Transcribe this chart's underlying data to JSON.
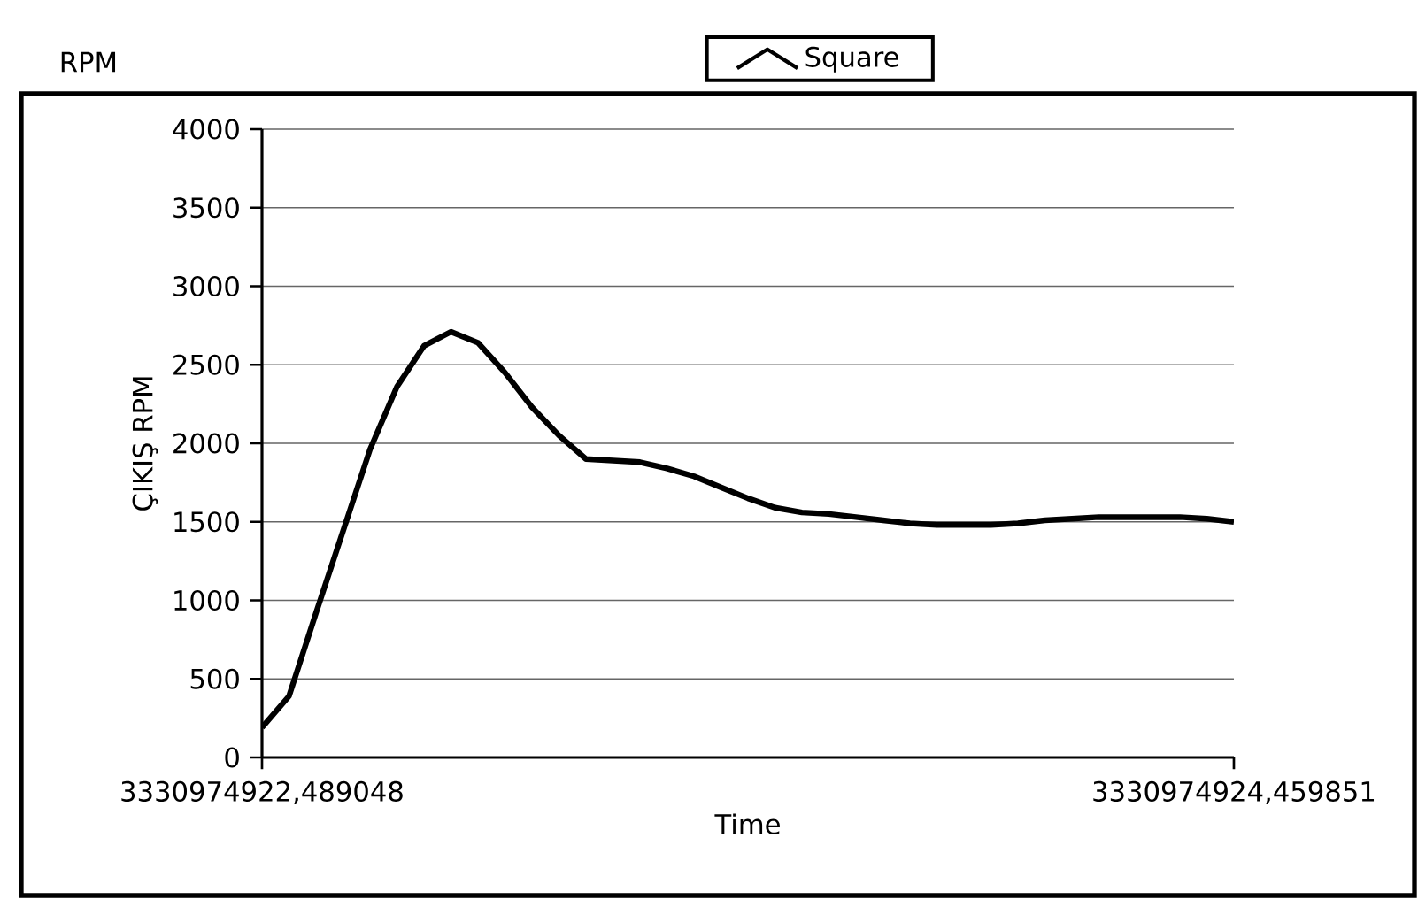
{
  "chart_data": {
    "type": "line",
    "xlabel": "Time",
    "ylabel": "ÇIKIŞ RPM",
    "annotations": [
      "RPM"
    ],
    "categories": [
      "3330974922,489048",
      null,
      null,
      null,
      null,
      null,
      null,
      null,
      null,
      null,
      null,
      null,
      null,
      null,
      null,
      null,
      null,
      null,
      null,
      null,
      null,
      null,
      null,
      null,
      null,
      null,
      null,
      null,
      null,
      null,
      null,
      null,
      null,
      null,
      null,
      null,
      "3330974924,459851"
    ],
    "series": [
      {
        "name": "Square",
        "color": "#000000",
        "values": [
          190,
          390,
          920,
          1440,
          1960,
          2360,
          2620,
          2710,
          2640,
          2450,
          2230,
          2050,
          1900,
          1890,
          1880,
          1840,
          1790,
          1720,
          1650,
          1590,
          1560,
          1550,
          1530,
          1510,
          1490,
          1480,
          1480,
          1480,
          1490,
          1510,
          1520,
          1530,
          1530,
          1530,
          1530,
          1520,
          1500
        ]
      }
    ],
    "ylim": [
      0,
      4000
    ],
    "yticks": [
      0,
      500,
      1000,
      1500,
      2000,
      2500,
      3000,
      3500,
      4000
    ],
    "grid": "y",
    "legend": "top"
  }
}
